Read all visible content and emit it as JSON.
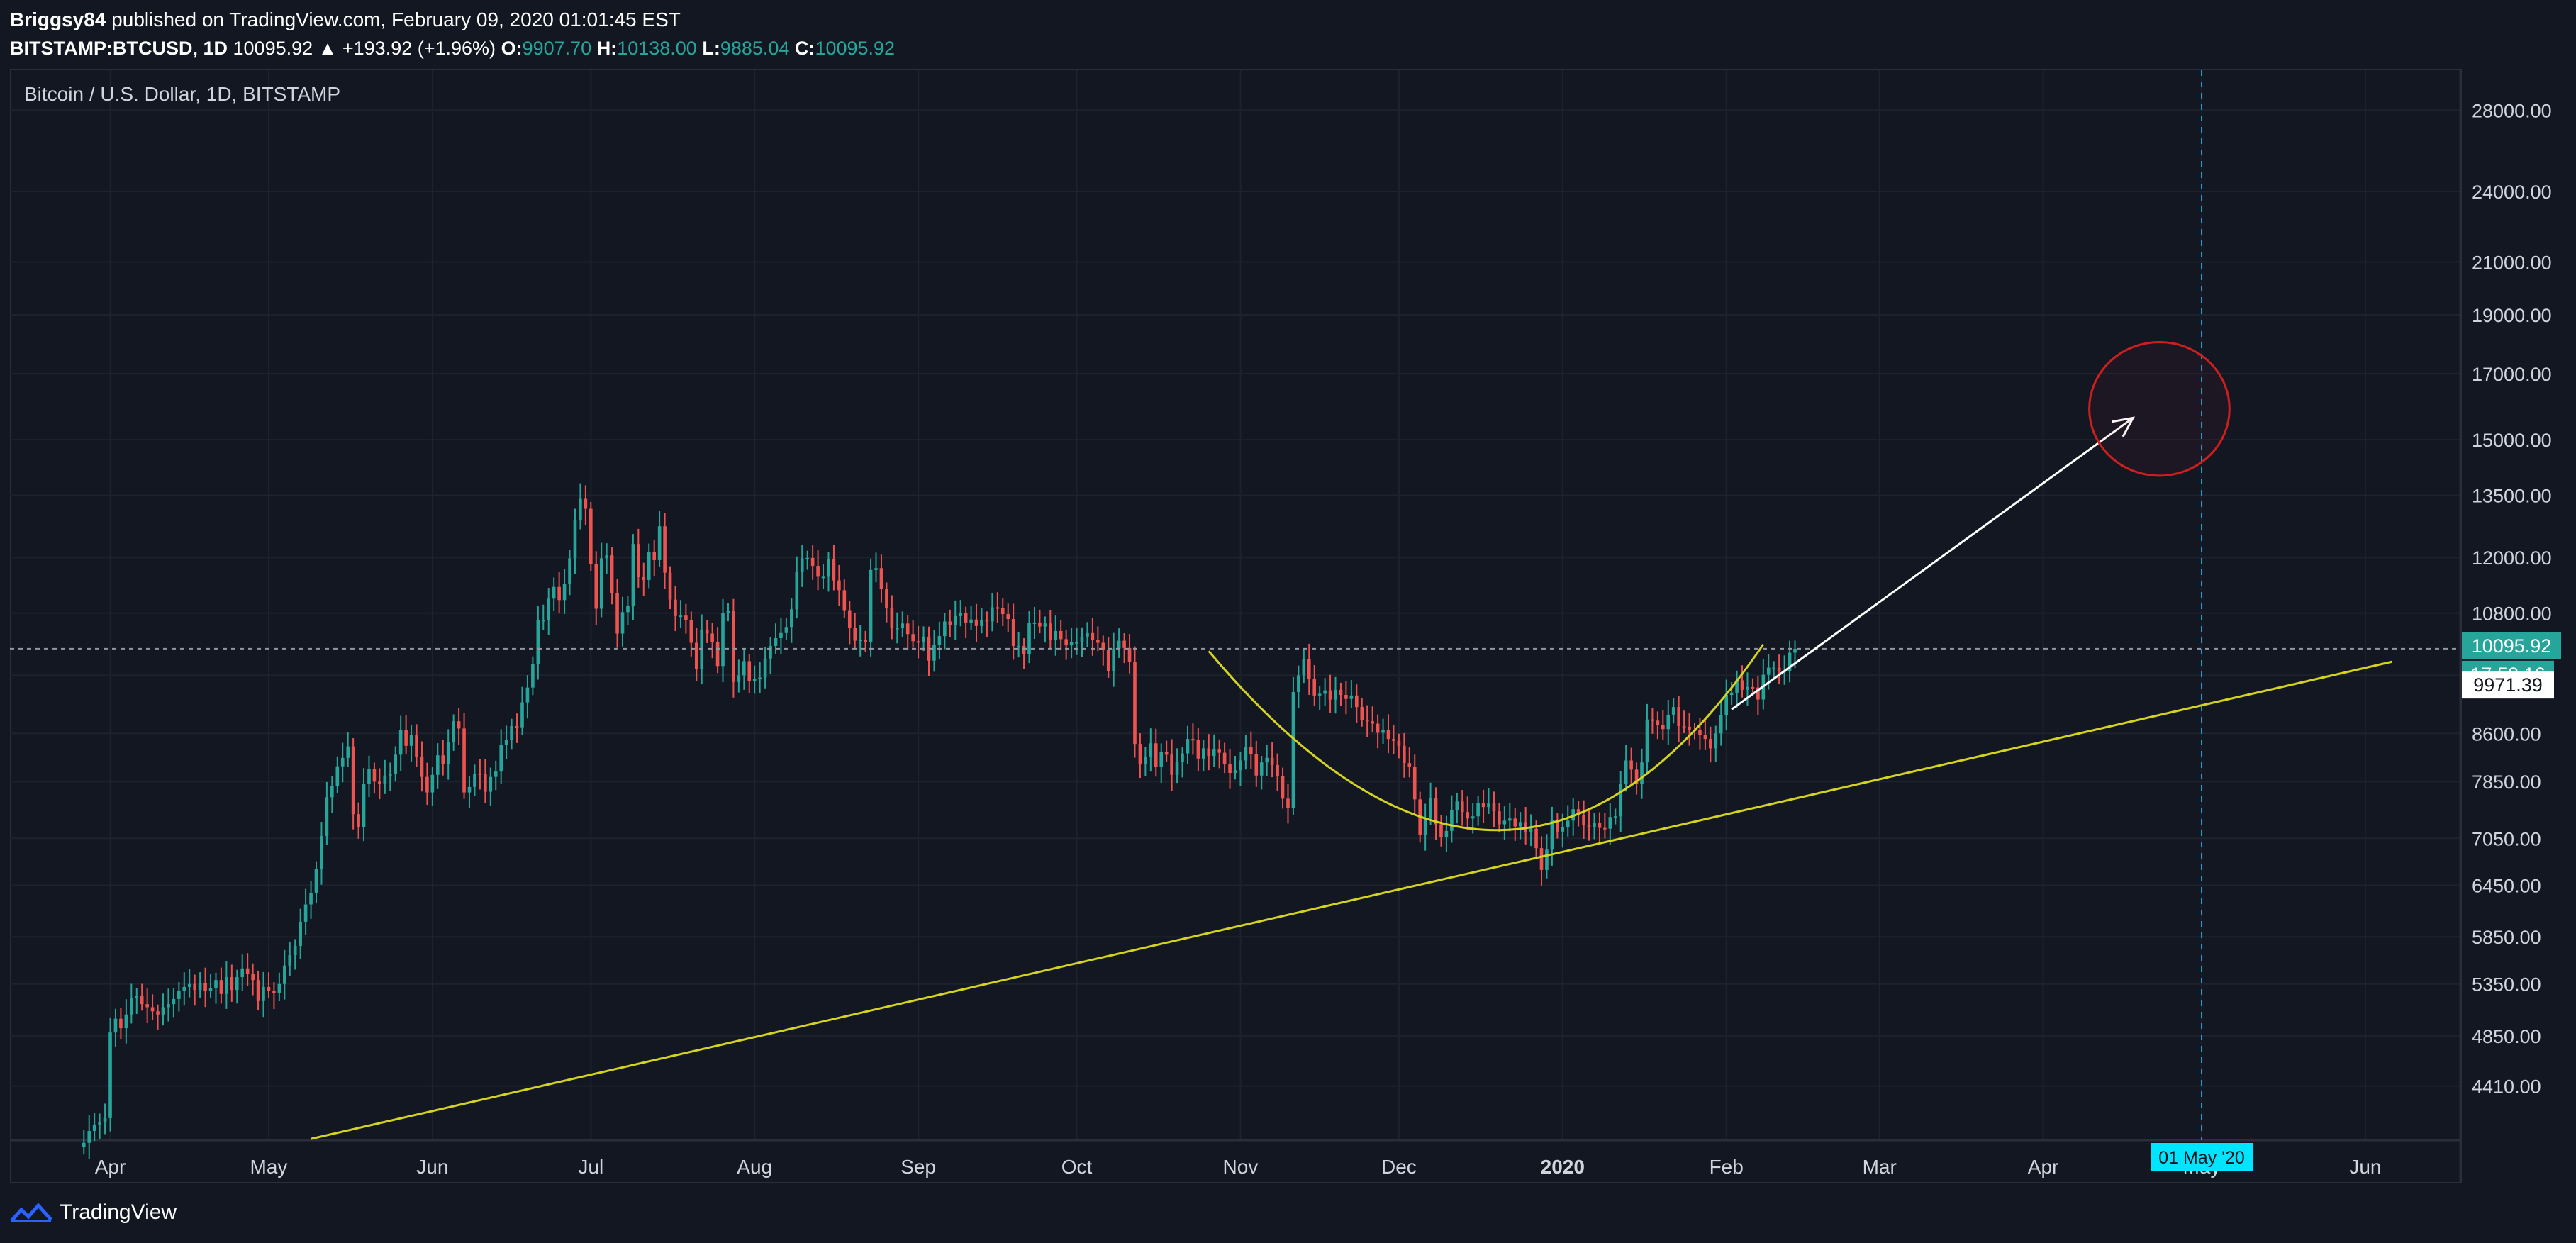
{
  "header": {
    "author": "Briggsy84",
    "published_text": " published on TradingView.com, February 09, 2020 01:01:45 EST",
    "symbol": "BITSTAMP:BTCUSD, 1D",
    "last_price": "10095.92",
    "change": "▲ +193.92 (+1.96%)",
    "o_label": "O:",
    "o_value": "9907.70",
    "h_label": "H:",
    "h_value": "10138.00",
    "l_label": "L:",
    "l_value": "9885.04",
    "c_label": "C:",
    "c_value": "10095.92"
  },
  "chart_title": "Bitcoin / U.S. Dollar, 1D, BITSTAMP",
  "footer": {
    "brand": "TradingView"
  },
  "colors": {
    "background": "#131722",
    "up": "#26a69a",
    "down": "#ef5350",
    "trendline": "#d4d41f",
    "arrow": "#ffffff",
    "circle": "#cc1f1f",
    "crosshair": "#2a9bd8"
  },
  "price_badges": {
    "last": "10095.92",
    "countdown": "17:58:16",
    "crosshair": "9971.39"
  },
  "date_badge": "01 May '20",
  "chart_data": {
    "type": "candlestick",
    "title": "Bitcoin / U.S. Dollar, 1D, BITSTAMP",
    "y_scale": "log",
    "ylim": [
      3980,
      30200
    ],
    "y_ticks": [
      4410,
      4850,
      5350,
      5850,
      6450,
      7050,
      7850,
      8600,
      9600,
      10800,
      12000,
      13500,
      15000,
      17000,
      19000,
      21000,
      24000,
      28000
    ],
    "y_tick_labels": [
      "4410.00",
      "4850.00",
      "5350.00",
      "5850.00",
      "6450.00",
      "7050.00",
      "7850.00",
      "8600.00",
      "",
      "10800.00",
      "12000.00",
      "13500.00",
      "15000.00",
      "17000.00",
      "19000.00",
      "21000.00",
      "24000.00",
      "28000.00"
    ],
    "x_labels": [
      "Apr",
      "May",
      "Jun",
      "Jul",
      "Aug",
      "Sep",
      "Oct",
      "Nov",
      "Dec",
      "2020",
      "Feb",
      "Mar",
      "Apr",
      "May",
      "Jun"
    ],
    "x_label_dates": [
      "2019-04-01",
      "2019-05-01",
      "2019-06-01",
      "2019-07-01",
      "2019-08-01",
      "2019-09-01",
      "2019-10-01",
      "2019-11-01",
      "2019-12-01",
      "2020-01-01",
      "2020-02-01",
      "2020-03-01",
      "2020-04-01",
      "2020-05-01",
      "2020-06-01"
    ],
    "x_range": [
      "2019-03-13",
      "2020-06-19"
    ],
    "candles": {
      "start_date": "2019-03-26",
      "interval": "1D",
      "close": [
        3930,
        3960,
        4050,
        4100,
        4120,
        4150,
        4880,
        5010,
        4920,
        5050,
        5210,
        5230,
        5150,
        5120,
        5080,
        5050,
        5120,
        5150,
        5200,
        5280,
        5320,
        5350,
        5290,
        5360,
        5280,
        5310,
        5390,
        5250,
        5420,
        5290,
        5420,
        5510,
        5450,
        5390,
        5180,
        5320,
        5280,
        5260,
        5350,
        5540,
        5650,
        5750,
        6020,
        6220,
        6360,
        6650,
        7080,
        7620,
        7780,
        8080,
        8210,
        8390,
        7380,
        7200,
        7820,
        8040,
        7850,
        7810,
        7940,
        7960,
        8260,
        8650,
        8400,
        8580,
        8230,
        7920,
        7690,
        7950,
        8250,
        8110,
        8460,
        8800,
        8680,
        7690,
        7770,
        7970,
        7960,
        7700,
        7920,
        8000,
        8420,
        8500,
        8720,
        8700,
        9120,
        9380,
        9810,
        10660,
        10660,
        11100,
        11350,
        11070,
        11420,
        11980,
        12880,
        13410,
        13160,
        11850,
        10890,
        11980,
        12050,
        11210,
        10390,
        10820,
        10950,
        12310,
        11560,
        11500,
        12130,
        11940,
        12730,
        11660,
        11080,
        10740,
        10750,
        10660,
        10210,
        9710,
        10470,
        10390,
        10220,
        9770,
        10800,
        10840,
        9480,
        9600,
        9860,
        9500,
        9530,
        9560,
        9910,
        10150,
        10300,
        10400,
        10520,
        10880,
        11680,
        11980,
        11990,
        11810,
        11570,
        11570,
        11960,
        11490,
        11280,
        10860,
        10500,
        10250,
        10270,
        10230,
        11720,
        11760,
        11300,
        10900,
        10500,
        10500,
        10590,
        10380,
        10240,
        10220,
        10330,
        9870,
        10170,
        10340,
        10630,
        10560,
        10740,
        10800,
        10610,
        10670,
        10540,
        10660,
        10630,
        10920,
        10900,
        10780,
        10680,
        10150,
        10150,
        10000,
        10600,
        10610,
        10530,
        10590,
        10260,
        10440,
        10280,
        10160,
        10220,
        10220,
        10330,
        10400,
        10260,
        10210,
        10080,
        9680,
        10100,
        10250,
        10110,
        9850,
        8430,
        8110,
        8230,
        8440,
        8070,
        8300,
        8260,
        7950,
        8150,
        8280,
        8510,
        8490,
        8200,
        8360,
        8240,
        8340,
        8290,
        8110,
        7980,
        8020,
        8170,
        8380,
        8270,
        7940,
        8140,
        8210,
        8100,
        7930,
        7600,
        7470,
        9300,
        9600,
        9900,
        9530,
        9240,
        9270,
        9330,
        9170,
        9340,
        9250,
        9180,
        9240,
        9040,
        8820,
        8800,
        8760,
        8610,
        8660,
        8510,
        8480,
        8400,
        8130,
        8070,
        7590,
        7100,
        7330,
        7610,
        7240,
        7070,
        7150,
        7440,
        7560,
        7410,
        7320,
        7350,
        7540,
        7480,
        7530,
        7420,
        7240,
        7290,
        7320,
        7210,
        7270,
        7140,
        7180,
        6920,
        6640,
        6900,
        7300,
        7140,
        7200,
        7290,
        7450,
        7370,
        7230,
        7200,
        7260,
        7190,
        7180,
        7340,
        7350,
        7820,
        8170,
        8030,
        7810,
        8140,
        8830,
        8810,
        8740,
        8670,
        8910,
        9040,
        8720,
        8710,
        8660,
        8650,
        8580,
        8510,
        8360,
        8600,
        8900,
        9250,
        9290,
        9510,
        9340,
        9390,
        9380,
        9170,
        9610,
        9740,
        9740,
        9680,
        9680,
        10020,
        10095
      ]
    },
    "overlays": {
      "uptrend_line": {
        "from": [
          "2019-05-09",
          3990
        ],
        "to": [
          "2020-06-06",
          9850
        ]
      },
      "rounded_bottom_curve": {
        "from": [
          "2019-10-26",
          10050
        ],
        "through": [
          "2019-12-20",
          7160
        ],
        "to": [
          "2020-02-08",
          10180
        ]
      },
      "projection_arrow": {
        "from": [
          "2020-02-02",
          9000
        ],
        "to": [
          "2020-04-18",
          15630
        ]
      },
      "target_circle": {
        "center": [
          "2020-04-23",
          15900
        ],
        "top_price": 17900,
        "bottom_price": 13900
      },
      "crosshair_date": "2020-05-01",
      "crosshair_price": 9971.39,
      "last_price_line": 10095.92
    }
  }
}
